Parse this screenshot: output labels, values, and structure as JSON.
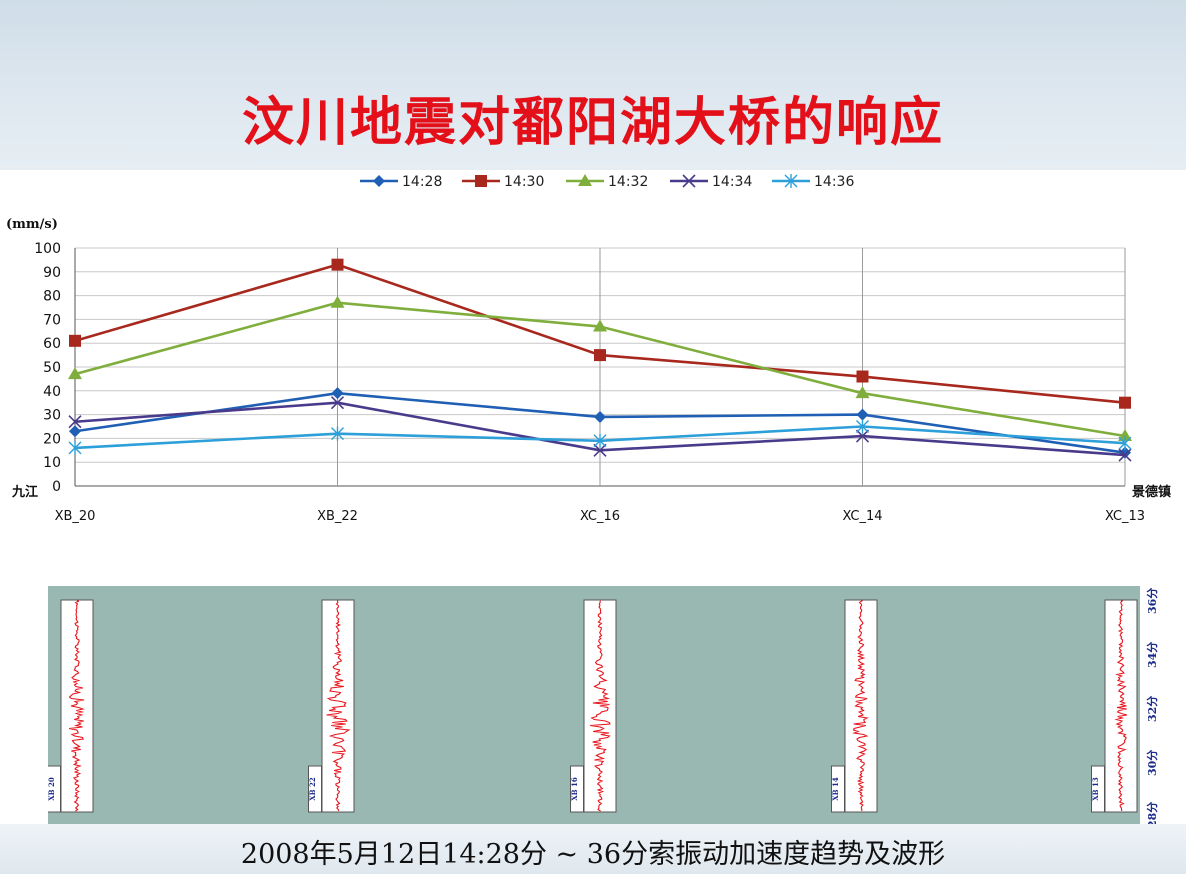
{
  "title": "汶川地震对鄱阳湖大桥的响应",
  "caption": "2008年5月12日14:28分 ~ 36分索振动加速度趋势及波形",
  "chart_data": {
    "type": "line",
    "ylabel": "(mm/s)",
    "ylim": [
      0,
      100
    ],
    "yticks": [
      0,
      10,
      20,
      30,
      40,
      50,
      60,
      70,
      80,
      90,
      100
    ],
    "categories": [
      "XB_20",
      "XB_22",
      "XC_16",
      "XC_14",
      "XC_13"
    ],
    "left_end_label": "九江",
    "right_end_label": "景德镇",
    "legend_position": "top",
    "grid": true,
    "series": [
      {
        "name": "14:28",
        "color": "#1f5fb4",
        "marker": "diamond",
        "values": [
          23,
          39,
          29,
          30,
          14
        ]
      },
      {
        "name": "14:30",
        "color": "#a8281e",
        "marker": "square",
        "values": [
          61,
          93,
          55,
          46,
          35
        ]
      },
      {
        "name": "14:32",
        "color": "#7fae3c",
        "marker": "triangle",
        "values": [
          47,
          77,
          67,
          39,
          21
        ]
      },
      {
        "name": "14:34",
        "color": "#4a3a8c",
        "marker": "x",
        "values": [
          27,
          35,
          15,
          21,
          13
        ]
      },
      {
        "name": "14:36",
        "color": "#2d9fd9",
        "marker": "star",
        "values": [
          16,
          22,
          19,
          25,
          18
        ]
      }
    ]
  },
  "waveforms": {
    "stations": [
      "XB 20",
      "XB 22",
      "XB 16",
      "XB 14",
      "XB 13"
    ],
    "time_labels": [
      "36分",
      "34分",
      "32分",
      "30分",
      "28分"
    ],
    "intensity": [
      0.55,
      0.95,
      0.75,
      0.6,
      0.35
    ]
  }
}
